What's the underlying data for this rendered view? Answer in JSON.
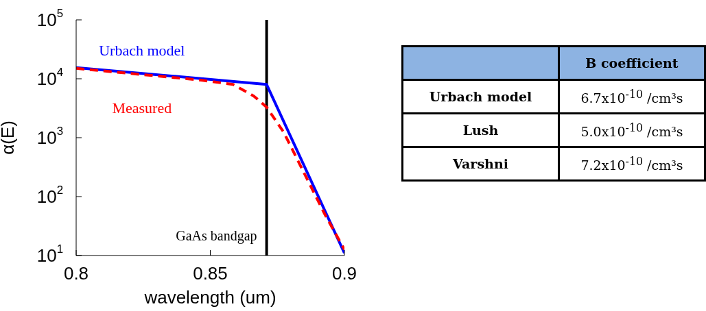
{
  "chart_data": [
    {
      "type": "line",
      "xlabel": "wavelength (um)",
      "ylabel": "α(E)",
      "log": "y",
      "legend": false,
      "xlim": [
        0.8,
        0.9
      ],
      "xticks": [
        0.8,
        0.85,
        0.9
      ],
      "ylim": [
        10,
        100000
      ],
      "yticks": [
        {
          "value": 10,
          "label": "10$^{1}$"
        },
        {
          "value": 100,
          "label": "10$^{2}$"
        },
        {
          "value": 1000,
          "label": "10$^{3}$"
        },
        {
          "value": 10000,
          "label": "10$^{4}$"
        },
        {
          "value": 100000,
          "label": "10$^{5}$"
        }
      ],
      "ref_lines": [
        {
          "axis": "x",
          "value": 0.871,
          "label": "GaAs bandgap",
          "color": "#000000",
          "line_style": "solid"
        }
      ],
      "series": [
        {
          "name": "Urbach model",
          "color": "#0000ff",
          "line_style": "solid",
          "x": [
            0.8,
            0.871,
            0.9
          ],
          "values": [
            15500,
            8000,
            11
          ]
        },
        {
          "name": "Measured",
          "color": "#ff0000",
          "line_style": "dashed",
          "x": [
            0.8,
            0.8466,
            0.8585,
            0.8662,
            0.871,
            0.8774,
            0.885,
            0.8927,
            0.9
          ],
          "values": [
            15000,
            9500,
            8000,
            5100,
            3300,
            1230,
            250,
            50,
            12.6
          ]
        }
      ]
    },
    {
      "type": "other",
      "annotations": [
        "B coefficient",
        "Urbach model",
        "6.7x10$^{-10}$ /cm³s",
        "Lush",
        "5.0x10$^{-10}$ /cm³s",
        "Varshni",
        "7.2x10$^{-10}$ /cm³s"
      ]
    }
  ]
}
